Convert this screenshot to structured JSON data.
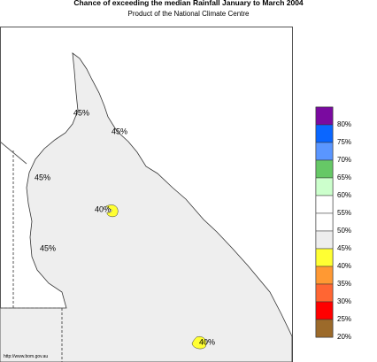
{
  "header": {
    "title": "Chance of exceeding the median Rainfall January to March 2004",
    "subtitle": "Product of the National Climate Centre"
  },
  "map": {
    "contour_labels": [
      "45%",
      "45%",
      "45%",
      "45%",
      "40%",
      "40%"
    ],
    "source": "http://www.bom.gov.au"
  },
  "legend": {
    "labels": [
      "80%",
      "75%",
      "70%",
      "65%",
      "60%",
      "55%",
      "50%",
      "45%",
      "40%",
      "35%",
      "30%",
      "25%",
      "20%"
    ],
    "colors": [
      "#7a0aa0",
      "#0a66ff",
      "#5a96ff",
      "#66c866",
      "#ccffcc",
      "#ffffff",
      "#ffffff",
      "#eeeeee",
      "#ffff33",
      "#ff9933",
      "#ff6633",
      "#ff0000",
      "#9c6a2a"
    ]
  }
}
